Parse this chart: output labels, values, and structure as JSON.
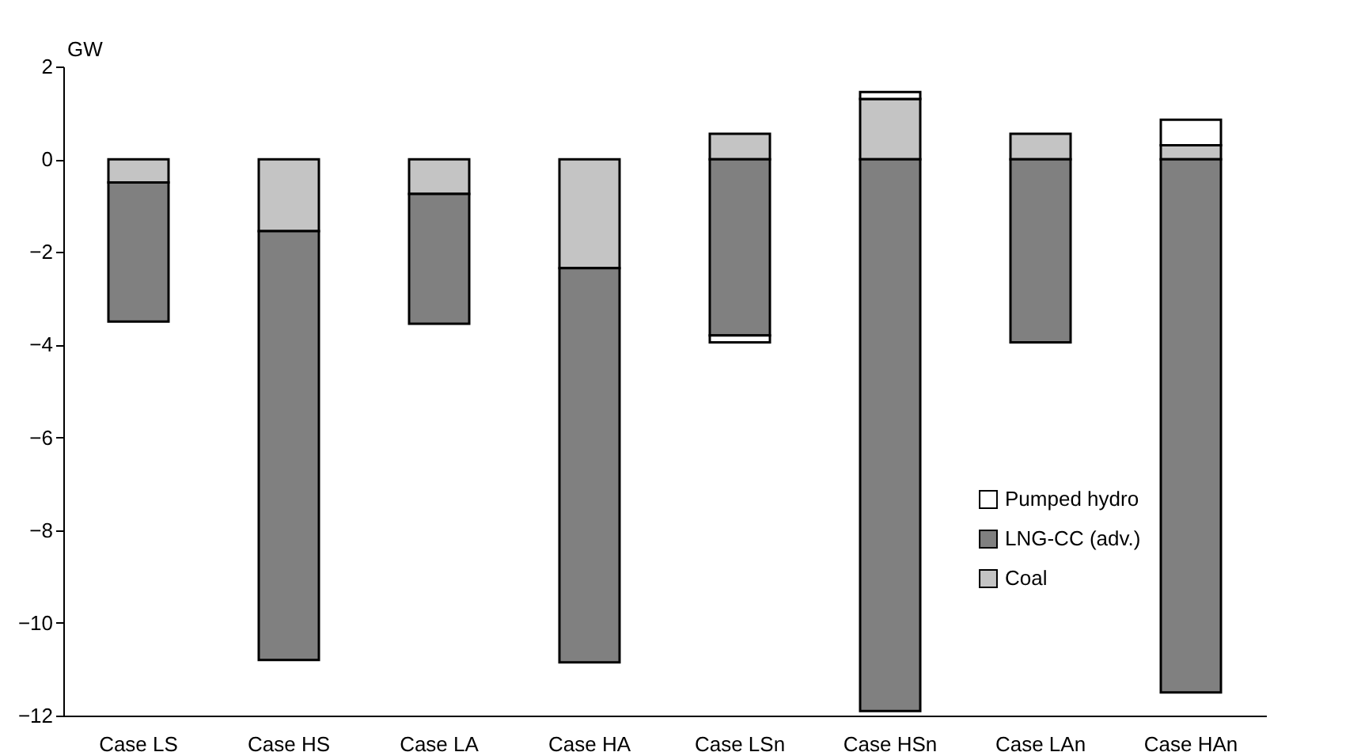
{
  "chart_data": {
    "type": "bar",
    "stacked": true,
    "ylabel": "GW",
    "categories": [
      "Case LS",
      "Case HS",
      "Case LA",
      "Case HA",
      "Case LSn",
      "Case HSn",
      "Case LAn",
      "Case HAn"
    ],
    "series": [
      {
        "name": "Coal",
        "color": "#c4c4c4",
        "values": [
          -0.5,
          -1.55,
          -0.75,
          -2.35,
          0.55,
          1.3,
          0.55,
          0.3
        ]
      },
      {
        "name": "LNG-CC (adv.)",
        "color": "#808080",
        "values": [
          -3.0,
          -9.25,
          -2.8,
          -8.5,
          -3.8,
          -11.9,
          -3.95,
          -11.5
        ]
      },
      {
        "name": "Pumped hydro",
        "color": "#ffffff",
        "values": [
          null,
          null,
          null,
          null,
          -0.15,
          0.15,
          null,
          0.55
        ]
      }
    ],
    "ylim": [
      -12,
      2
    ],
    "yticks": [
      -12,
      -10,
      -8,
      -6,
      -4,
      -2,
      0,
      2
    ],
    "legend": "bottom right",
    "grid": false
  }
}
